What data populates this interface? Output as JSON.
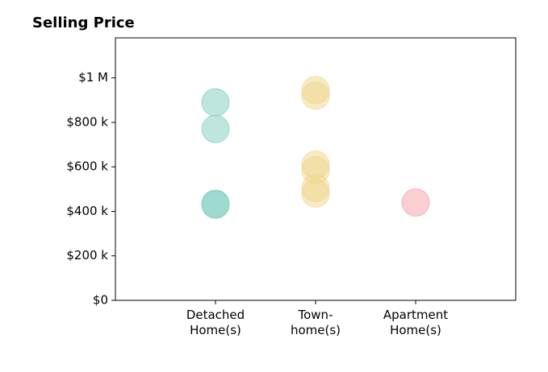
{
  "chart_data": {
    "type": "strip",
    "title": "Selling Price",
    "categories": [
      "Detached\nHome(s)",
      "Town-\nhome(s)",
      "Apartment\nHome(s)"
    ],
    "values": [
      [
        890000,
        770000,
        435000,
        430000
      ],
      [
        945000,
        920000,
        610000,
        585000,
        505000,
        480000
      ],
      [
        440000
      ]
    ],
    "colors": [
      "#7ecdc0",
      "#f0d68c",
      "#f4a0a8"
    ],
    "ylim": [
      0,
      1180000
    ],
    "yticks": [
      {
        "value": 0,
        "label": "$0"
      },
      {
        "value": 200000,
        "label": "$200 k"
      },
      {
        "value": 400000,
        "label": "$400 k"
      },
      {
        "value": 600000,
        "label": "$600 k"
      },
      {
        "value": 800000,
        "label": "$800 k"
      },
      {
        "value": 1000000,
        "label": "$1 M"
      }
    ]
  }
}
